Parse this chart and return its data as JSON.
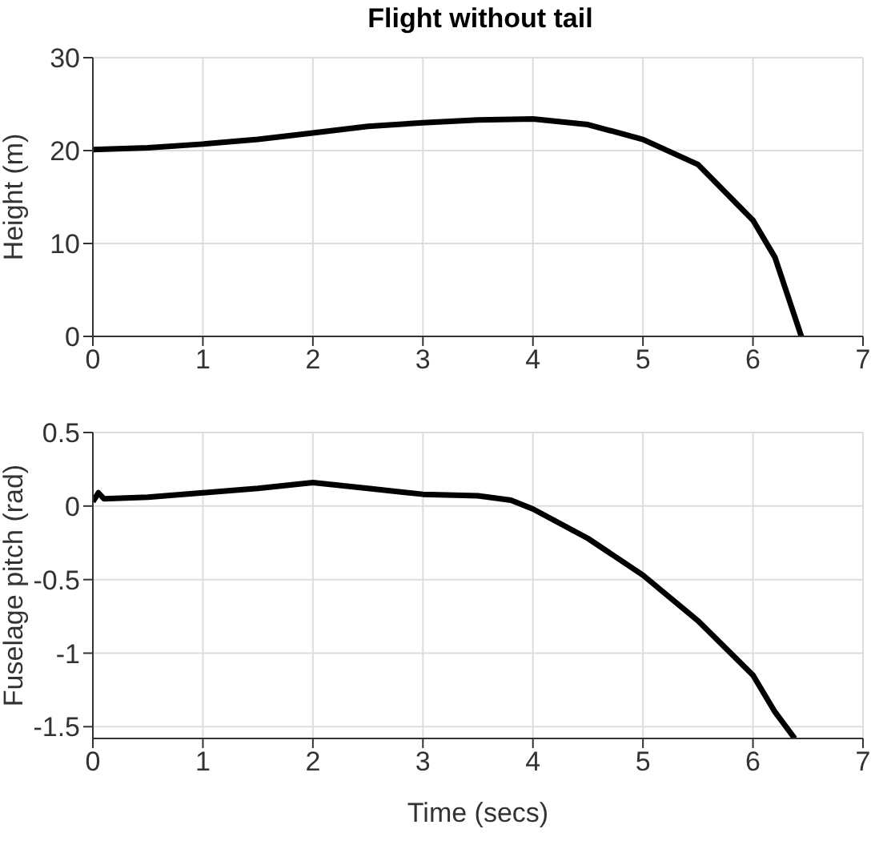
{
  "chart_data": [
    {
      "type": "line",
      "title": "Flight without tail",
      "ylabel": "Height (m)",
      "x": [
        0,
        0.5,
        1,
        1.5,
        2,
        2.5,
        3,
        3.5,
        4,
        4.5,
        5,
        5.5,
        6,
        6.2,
        6.44
      ],
      "series": [
        {
          "color": "#000000",
          "values": [
            20.1,
            20.3,
            20.7,
            21.2,
            21.9,
            22.6,
            23.0,
            23.3,
            23.4,
            22.8,
            21.2,
            18.5,
            12.5,
            8.5,
            0
          ]
        }
      ],
      "xlim": [
        0,
        7
      ],
      "xticks": [
        0,
        1,
        2,
        3,
        4,
        5,
        6,
        7
      ],
      "ylim": [
        0,
        30
      ],
      "yticks": [
        0,
        10,
        20,
        30
      ],
      "grid": true,
      "marker": "none",
      "line_style": "solid"
    },
    {
      "type": "line",
      "xlabel": "Time (secs)",
      "ylabel": "Fuselage pitch (rad)",
      "x": [
        0,
        0.05,
        0.1,
        0.5,
        1,
        1.5,
        2,
        2.5,
        3,
        3.5,
        3.8,
        4,
        4.5,
        5,
        5.5,
        6,
        6.2,
        6.38
      ],
      "series": [
        {
          "color": "#000000",
          "values": [
            0.03,
            0.09,
            0.05,
            0.06,
            0.09,
            0.12,
            0.16,
            0.12,
            0.08,
            0.07,
            0.04,
            -0.02,
            -0.22,
            -0.47,
            -0.78,
            -1.15,
            -1.4,
            -1.58
          ]
        }
      ],
      "xlim": [
        0,
        7
      ],
      "xticks": [
        0,
        1,
        2,
        3,
        4,
        5,
        6,
        7
      ],
      "ylim": [
        -1.58,
        0.5
      ],
      "yticks": [
        -1.5,
        -1,
        -0.5,
        0,
        0.5
      ],
      "grid": true,
      "marker": "none",
      "line_style": "solid"
    }
  ]
}
